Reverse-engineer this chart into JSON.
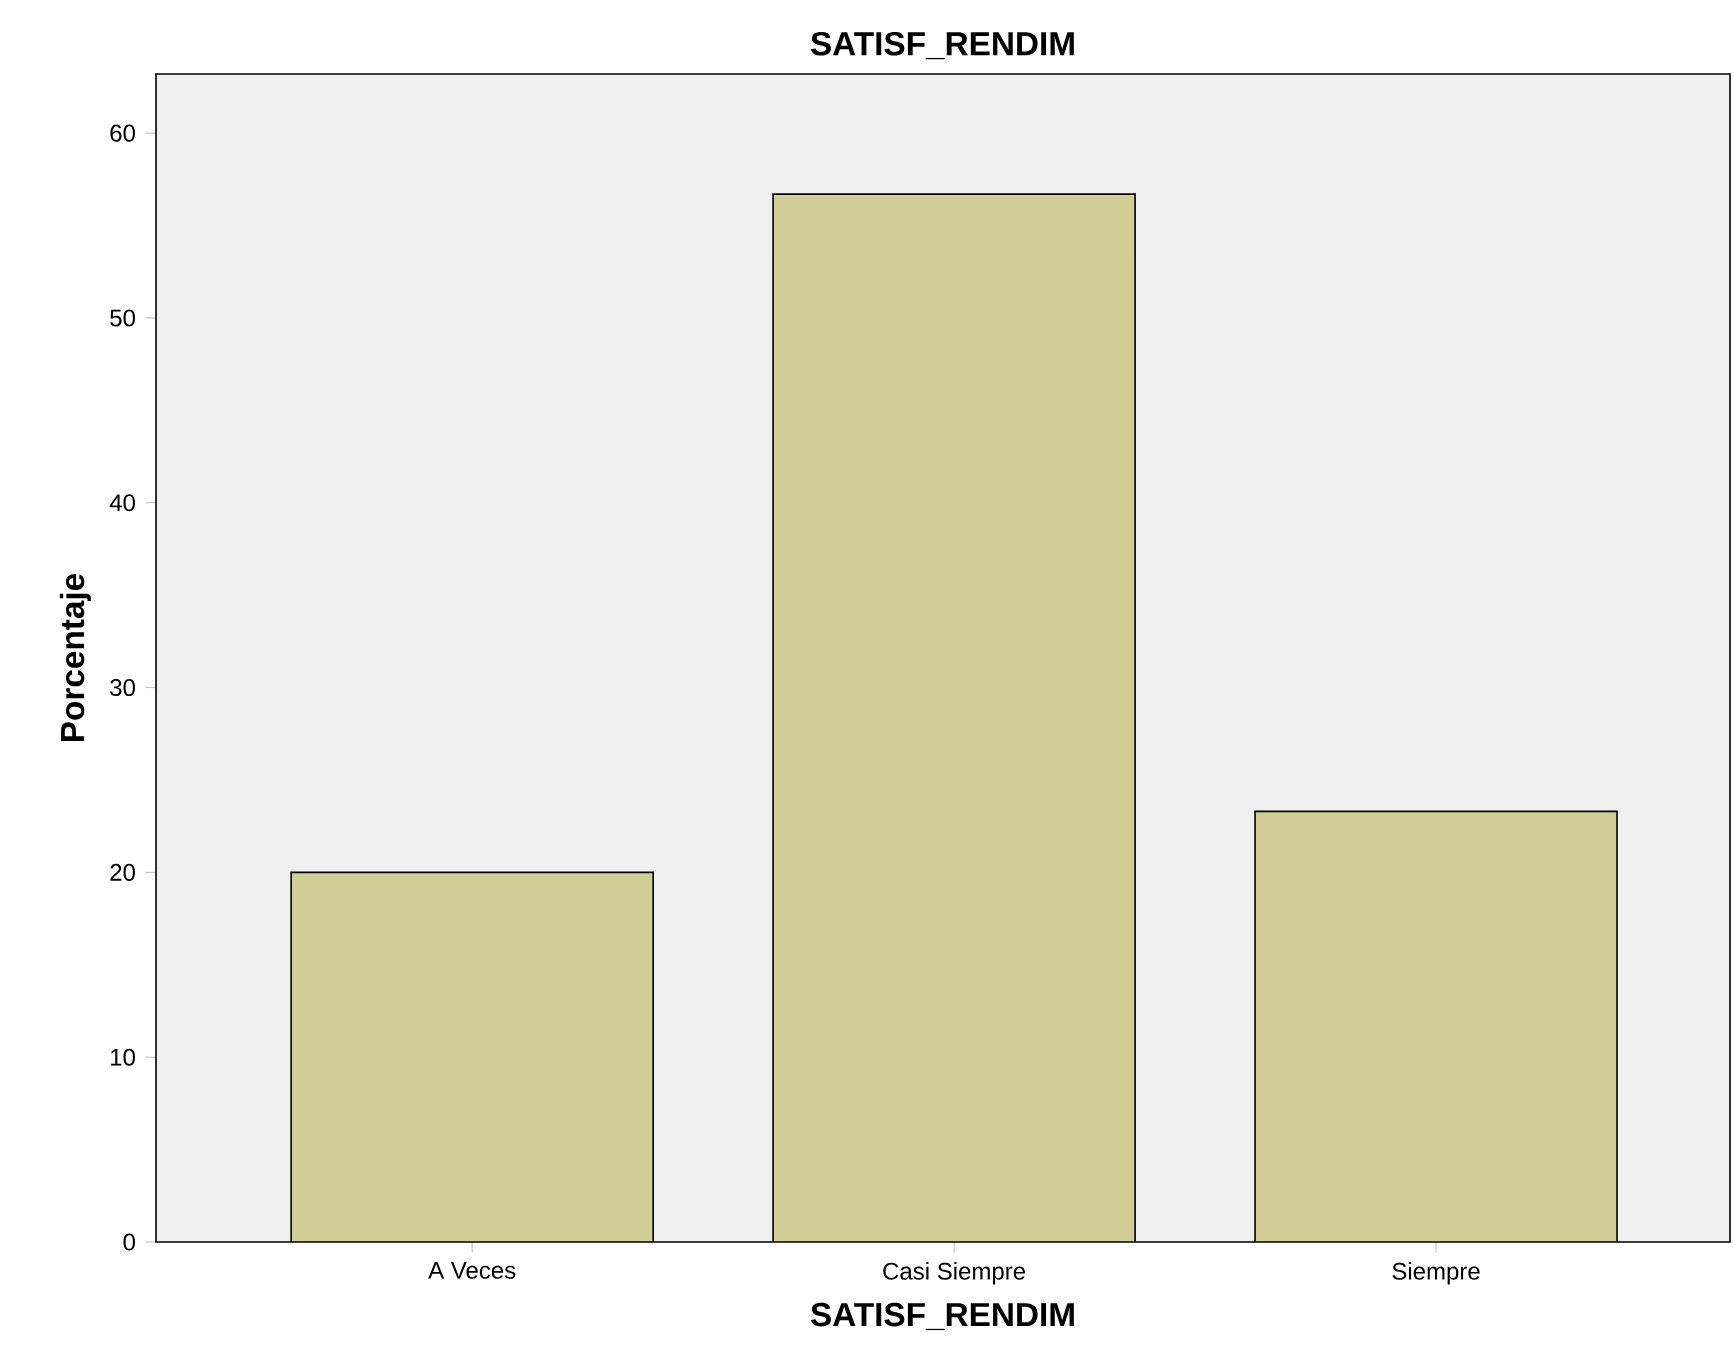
{
  "chart_data": {
    "type": "bar",
    "title": "SATISF_RENDIM",
    "xlabel": "SATISF_RENDIM",
    "ylabel": "Porcentaje",
    "categories": [
      "A Veces",
      "Casi Siempre",
      "Siempre"
    ],
    "values": [
      20.0,
      56.7,
      23.3
    ],
    "color": "#d3ce98",
    "ylim": [
      0,
      63.2
    ],
    "yticks": [
      0,
      10,
      20,
      30,
      40,
      50,
      60
    ]
  }
}
